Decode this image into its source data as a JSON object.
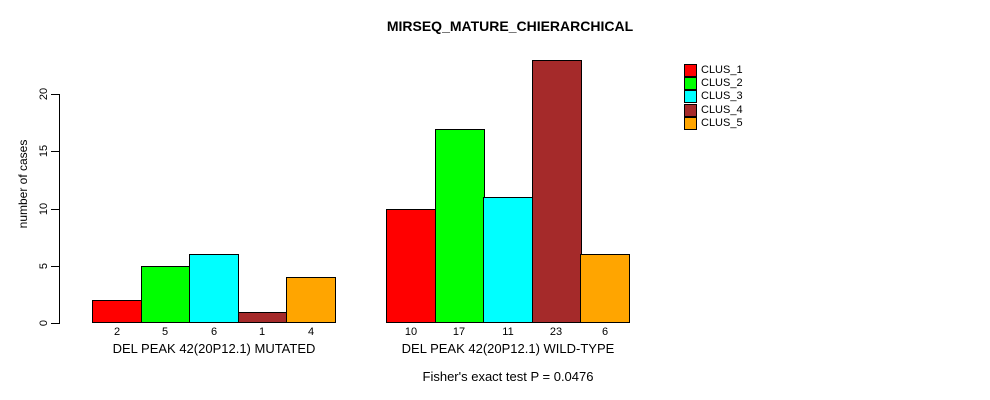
{
  "footer_note": "Fisher's exact test P = 0.0476",
  "chart_data": {
    "type": "bar",
    "title": "MIRSEQ_MATURE_CHIERARCHICAL",
    "xlabel": "",
    "ylabel": "number of cases",
    "ylim": [
      0,
      23
    ],
    "y_ticks": [
      0,
      5,
      10,
      15,
      20
    ],
    "grid": false,
    "bar_value_labels": true,
    "legend_position": "topright",
    "categories": [
      "DEL PEAK 42(20P12.1) MUTATED",
      "DEL PEAK 42(20P12.1) WILD-TYPE"
    ],
    "series": [
      {
        "name": "CLUS_1",
        "color": "#FF0000",
        "values": [
          2,
          10
        ]
      },
      {
        "name": "CLUS_2",
        "color": "#00FF00",
        "values": [
          5,
          17
        ]
      },
      {
        "name": "CLUS_3",
        "color": "#00FFFF",
        "values": [
          6,
          11
        ]
      },
      {
        "name": "CLUS_4",
        "color": "#A52A2A",
        "values": [
          1,
          23
        ]
      },
      {
        "name": "CLUS_5",
        "color": "#FFA500",
        "values": [
          4,
          6
        ]
      }
    ]
  }
}
